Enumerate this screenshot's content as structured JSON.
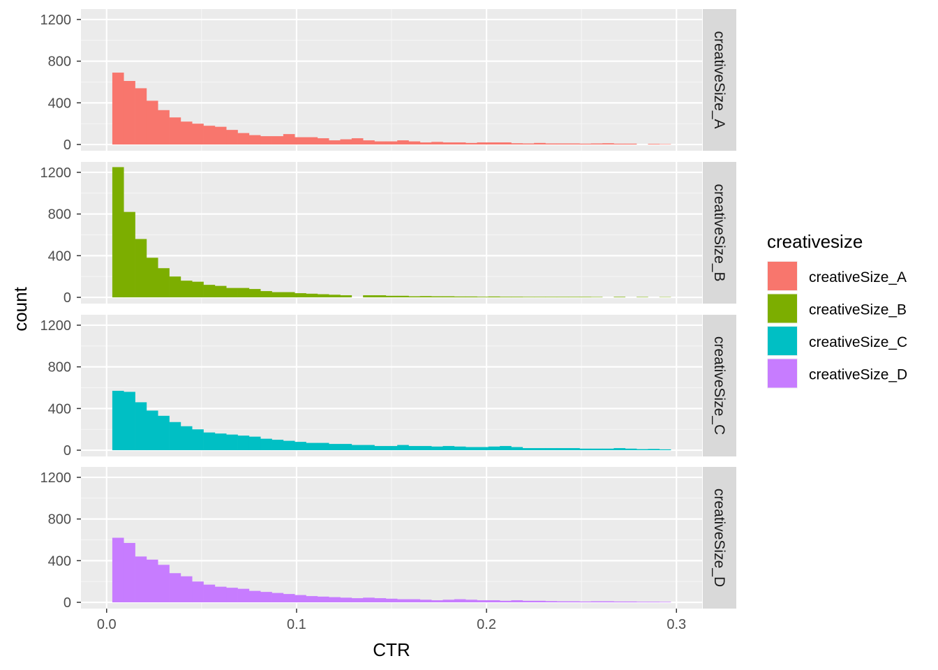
{
  "chart_data": {
    "type": "histogram",
    "title": "",
    "xlabel": "CTR",
    "ylabel": "count",
    "xlim": [
      -0.0135,
      0.3135
    ],
    "ylim": [
      -60,
      1300
    ],
    "x_ticks": [
      0.0,
      0.1,
      0.2,
      0.3
    ],
    "x_tick_labels": [
      "0.0",
      "0.1",
      "0.2",
      "0.3"
    ],
    "y_ticks": [
      0,
      400,
      800,
      1200
    ],
    "y_tick_labels": [
      "0",
      "400",
      "800",
      "1200"
    ],
    "grid": true,
    "facet_by": "creativesize",
    "legend": {
      "title": "creativesize",
      "position": "right",
      "entries": [
        "creativeSize_A",
        "creativeSize_B",
        "creativeSize_C",
        "creativeSize_D"
      ]
    },
    "bins": {
      "start": 0.003,
      "width": 0.006,
      "count": 49
    },
    "series": [
      {
        "name": "creativeSize_A",
        "color": "#F8766D",
        "values": [
          690,
          610,
          540,
          420,
          330,
          260,
          220,
          200,
          180,
          170,
          140,
          110,
          90,
          80,
          80,
          100,
          70,
          70,
          60,
          40,
          50,
          60,
          40,
          30,
          30,
          40,
          30,
          20,
          25,
          20,
          20,
          15,
          20,
          20,
          20,
          12,
          10,
          15,
          10,
          10,
          10,
          8,
          10,
          12,
          8,
          8,
          0,
          6,
          4
        ]
      },
      {
        "name": "creativeSize_B",
        "color": "#7CAE00",
        "values": [
          1250,
          820,
          560,
          380,
          280,
          200,
          160,
          150,
          120,
          110,
          90,
          90,
          80,
          60,
          50,
          50,
          40,
          35,
          30,
          25,
          20,
          0,
          20,
          20,
          15,
          15,
          10,
          12,
          10,
          10,
          8,
          8,
          6,
          8,
          6,
          6,
          5,
          5,
          5,
          5,
          5,
          5,
          4,
          0,
          5,
          0,
          4,
          0,
          3
        ]
      },
      {
        "name": "creativeSize_C",
        "color": "#00BFC4",
        "values": [
          570,
          560,
          460,
          380,
          330,
          270,
          230,
          200,
          170,
          160,
          150,
          140,
          130,
          110,
          100,
          90,
          80,
          70,
          70,
          60,
          60,
          50,
          50,
          40,
          40,
          50,
          40,
          40,
          35,
          40,
          35,
          30,
          30,
          35,
          40,
          30,
          20,
          20,
          20,
          20,
          20,
          15,
          15,
          15,
          20,
          15,
          10,
          12,
          8
        ]
      },
      {
        "name": "creativeSize_D",
        "color": "#C77CFF",
        "values": [
          620,
          570,
          440,
          410,
          360,
          280,
          250,
          200,
          170,
          150,
          140,
          130,
          110,
          100,
          90,
          80,
          70,
          60,
          55,
          50,
          45,
          40,
          45,
          40,
          35,
          30,
          30,
          25,
          20,
          25,
          30,
          25,
          20,
          20,
          15,
          20,
          15,
          15,
          12,
          10,
          10,
          8,
          10,
          10,
          8,
          8,
          6,
          6,
          5
        ]
      }
    ]
  }
}
